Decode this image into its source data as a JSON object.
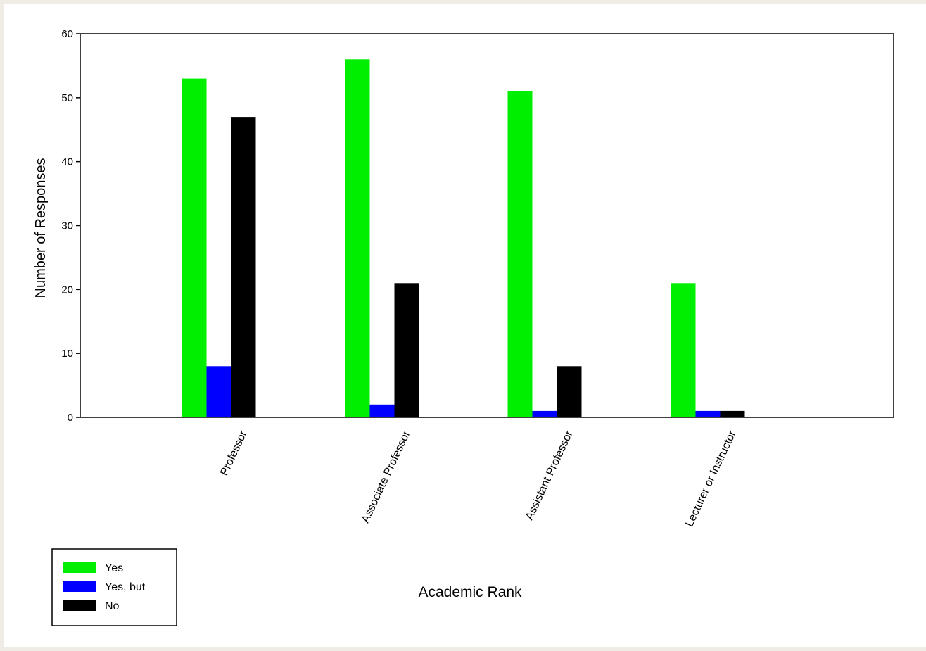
{
  "chart_data": {
    "type": "bar",
    "title": "",
    "xlabel": "Academic Rank",
    "ylabel": "Number of Responses",
    "categories": [
      "Professor",
      "Associate Professor",
      "Assistant Professor",
      "Lecturer or Instructor"
    ],
    "series": [
      {
        "name": "Yes",
        "color": "#00ee00",
        "values": [
          53,
          56,
          51,
          21
        ]
      },
      {
        "name": "Yes, but",
        "color": "#0000ff",
        "values": [
          8,
          2,
          1,
          1
        ]
      },
      {
        "name": "No",
        "color": "#000000",
        "values": [
          47,
          21,
          8,
          1
        ]
      }
    ],
    "ylim": [
      0,
      60
    ],
    "yticks": [
      0,
      10,
      20,
      30,
      40,
      50,
      60
    ],
    "grid": false,
    "legend_position": "bottom-left"
  }
}
